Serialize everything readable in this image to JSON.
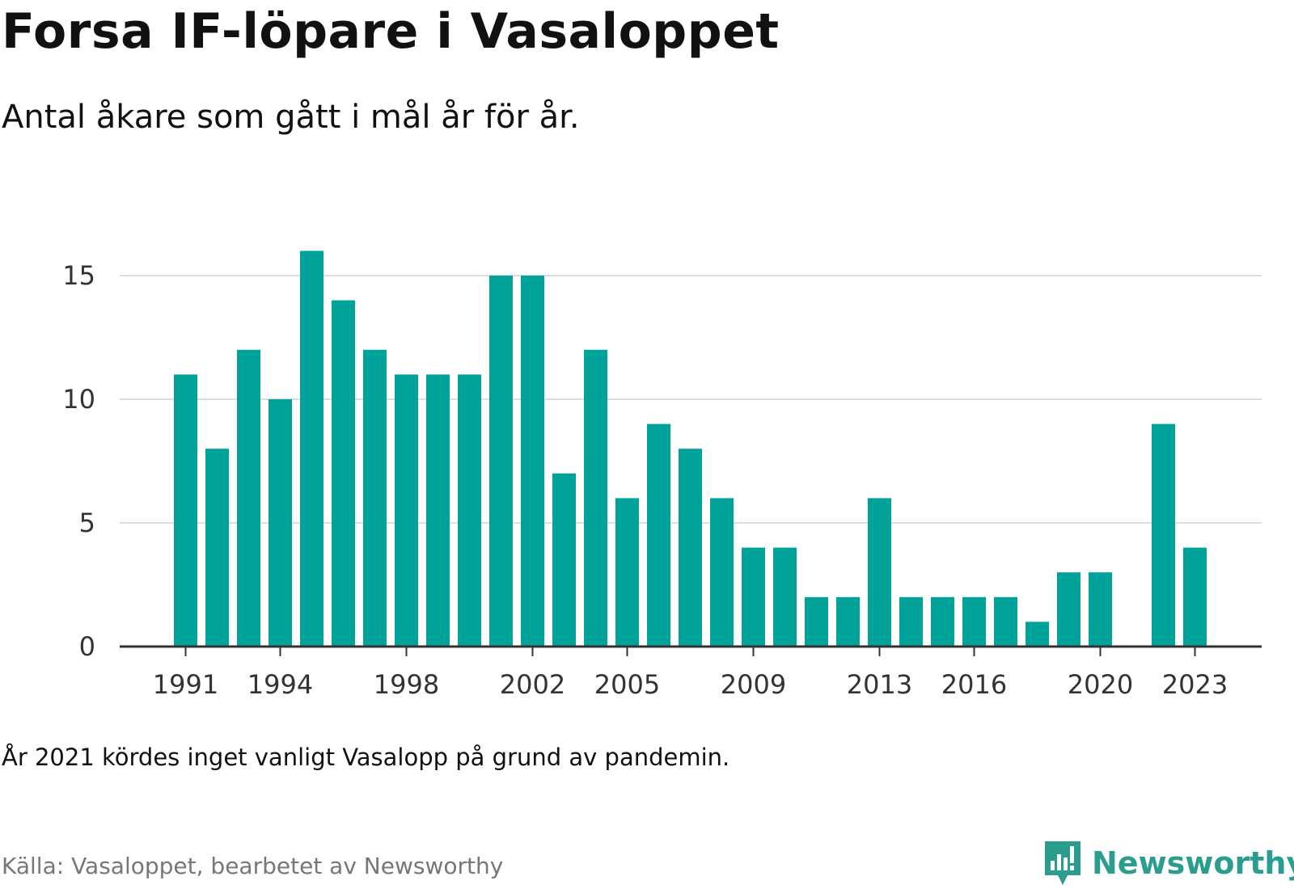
{
  "title": "Forsa IF-löpare i Vasaloppet",
  "subtitle": "Antal åkare som gått i mål år för år.",
  "note": "År 2021 kördes inget vanligt Vasalopp på grund av pandemin.",
  "source": "Källa: Vasaloppet, bearbetet av Newsworthy",
  "brand": "Newsworthy",
  "colors": {
    "bar": "#00a39a",
    "grid": "#dddddd",
    "axis": "#333333",
    "brand": "#2a9d8f"
  },
  "chart_data": {
    "type": "bar",
    "categories": [
      1991,
      1992,
      1993,
      1994,
      1995,
      1996,
      1997,
      1998,
      1999,
      2000,
      2001,
      2002,
      2003,
      2004,
      2005,
      2006,
      2007,
      2008,
      2009,
      2010,
      2011,
      2012,
      2013,
      2014,
      2015,
      2016,
      2017,
      2018,
      2019,
      2020,
      2021,
      2022,
      2023
    ],
    "values": [
      11,
      8,
      12,
      10,
      16,
      14,
      12,
      11,
      11,
      11,
      15,
      15,
      7,
      12,
      6,
      9,
      8,
      6,
      4,
      4,
      2,
      2,
      6,
      2,
      2,
      2,
      2,
      1,
      3,
      3,
      null,
      9,
      4
    ],
    "x_tick_labels": [
      1991,
      1994,
      1998,
      2002,
      2005,
      2009,
      2013,
      2016,
      2020,
      2023
    ],
    "y_ticks": [
      0,
      5,
      10,
      15
    ],
    "ylim": [
      0,
      16
    ],
    "grid": true,
    "xlabel": "",
    "ylabel": ""
  }
}
